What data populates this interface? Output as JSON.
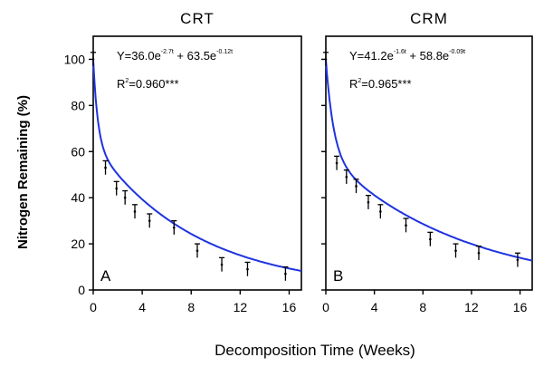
{
  "figure": {
    "ylabel": "Nitrogen Remaining (%)",
    "xlabel": "Decomposition Time (Weeks)"
  },
  "chart_data": [
    {
      "type": "line",
      "title": "CRT",
      "panel_label": "A",
      "equation": {
        "prefix": "Y=36.0e",
        "exp1": "-2.7t",
        "middle": " + 63.5e",
        "exp2": "-0.12t"
      },
      "r2": {
        "r": "R",
        "sup": "2",
        "rest": "=0.960***"
      },
      "xlim": [
        0,
        17
      ],
      "ylim": [
        0,
        110
      ],
      "xticks": [
        0,
        4,
        8,
        12,
        16
      ],
      "yticks": [
        0,
        20,
        40,
        60,
        80,
        100
      ],
      "line_color": "#1f33e0",
      "model": {
        "a": 36.0,
        "b": 2.7,
        "c": 63.5,
        "d": 0.12
      },
      "series": [
        {
          "kind": "observed",
          "x": [
            0,
            1,
            1.9,
            2.6,
            3.4,
            4.6,
            6.6,
            8.5,
            10.5,
            12.6,
            15.7
          ],
          "y": [
            100,
            53,
            44,
            40,
            34,
            30,
            27,
            17,
            11,
            9,
            7
          ],
          "err": [
            3,
            3,
            3,
            3,
            3,
            3,
            3,
            3,
            3,
            3,
            3
          ]
        }
      ]
    },
    {
      "type": "line",
      "title": "CRM",
      "panel_label": "B",
      "equation": {
        "prefix": "Y=41.2e",
        "exp1": "-1.6t",
        "middle": " + 58.8e",
        "exp2": "-0.09t"
      },
      "r2": {
        "r": "R",
        "sup": "2",
        "rest": "=0.965***"
      },
      "xlim": [
        0,
        17
      ],
      "ylim": [
        0,
        110
      ],
      "xticks": [
        0,
        4,
        8,
        12,
        16
      ],
      "yticks": [
        0,
        20,
        40,
        60,
        80,
        100
      ],
      "line_color": "#1f33e0",
      "model": {
        "a": 41.2,
        "b": 1.6,
        "c": 58.8,
        "d": 0.09
      },
      "series": [
        {
          "kind": "observed",
          "x": [
            0,
            0.9,
            1.7,
            2.5,
            3.5,
            4.5,
            6.6,
            8.6,
            10.7,
            12.6,
            15.8
          ],
          "y": [
            100,
            55,
            49,
            45,
            38,
            34,
            28,
            22,
            17,
            16,
            13
          ],
          "err": [
            3,
            3,
            3,
            3,
            3,
            3,
            3,
            3,
            3,
            3,
            3
          ]
        }
      ]
    }
  ]
}
